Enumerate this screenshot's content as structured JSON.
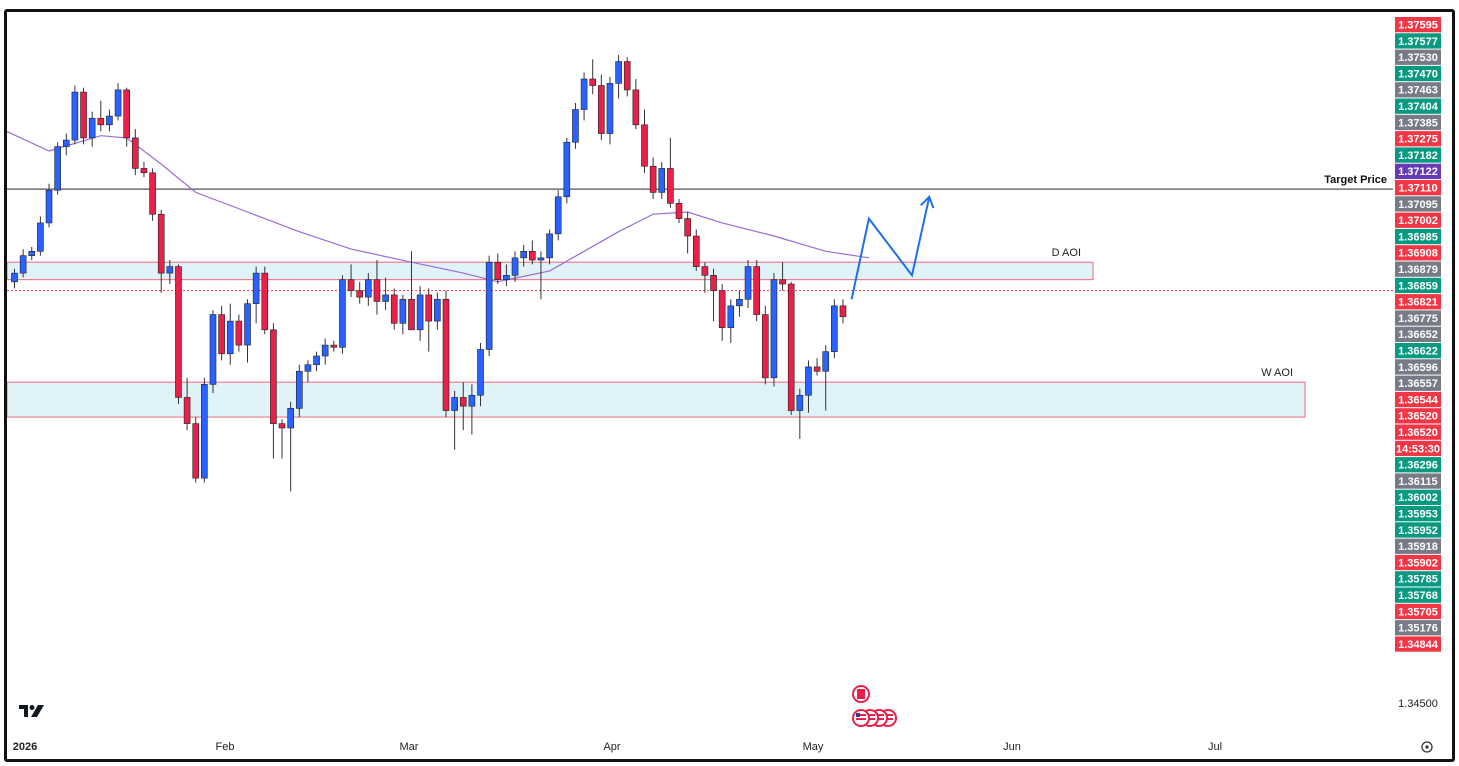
{
  "chart_data": {
    "type": "candlestick",
    "instrument_logo": "tradingview-logo",
    "x_axis": {
      "labels": [
        "2026",
        "Feb",
        "Mar",
        "Apr",
        "May",
        "Jun",
        "Jul"
      ]
    },
    "y_axis": {
      "plain_label": "1.34500",
      "price_tags": [
        {
          "text": "1.37595",
          "color": "#f23645"
        },
        {
          "text": "1.37577",
          "color": "#089981"
        },
        {
          "text": "1.37530",
          "color": "#787b86"
        },
        {
          "text": "1.37470",
          "color": "#089981"
        },
        {
          "text": "1.37463",
          "color": "#787b86"
        },
        {
          "text": "1.37404",
          "color": "#089981"
        },
        {
          "text": "1.37385",
          "color": "#787b86"
        },
        {
          "text": "1.37275",
          "color": "#f23645"
        },
        {
          "text": "1.37182",
          "color": "#089981"
        },
        {
          "text": "1.37122",
          "color": "#673ab7"
        },
        {
          "text": "1.37110",
          "color": "#f23645"
        },
        {
          "text": "1.37095",
          "color": "#787b86"
        },
        {
          "text": "1.37002",
          "color": "#f23645"
        },
        {
          "text": "1.36985",
          "color": "#089981"
        },
        {
          "text": "1.36908",
          "color": "#f23645"
        },
        {
          "text": "1.36879",
          "color": "#787b86"
        },
        {
          "text": "1.36859",
          "color": "#089981"
        },
        {
          "text": "1.36821",
          "color": "#f23645"
        },
        {
          "text": "1.36775",
          "color": "#787b86"
        },
        {
          "text": "1.36652",
          "color": "#787b86"
        },
        {
          "text": "1.36622",
          "color": "#089981"
        },
        {
          "text": "1.36596",
          "color": "#787b86"
        },
        {
          "text": "1.36557",
          "color": "#787b86"
        },
        {
          "text": "1.36544",
          "color": "#f23645"
        },
        {
          "text": "1.36520",
          "color": "#f23645"
        },
        {
          "text": "1.36520",
          "color": "#f23645"
        },
        {
          "text": "14:53:30",
          "color": "#f23645"
        },
        {
          "text": "1.36296",
          "color": "#089981"
        },
        {
          "text": "1.36115",
          "color": "#787b86"
        },
        {
          "text": "1.36002",
          "color": "#089981"
        },
        {
          "text": "1.35953",
          "color": "#089981"
        },
        {
          "text": "1.35952",
          "color": "#089981"
        },
        {
          "text": "1.35918",
          "color": "#787b86"
        },
        {
          "text": "1.35902",
          "color": "#f23645"
        },
        {
          "text": "1.35785",
          "color": "#089981"
        },
        {
          "text": "1.35768",
          "color": "#089981"
        },
        {
          "text": "1.35705",
          "color": "#f23645"
        },
        {
          "text": "1.35176",
          "color": "#787b86"
        },
        {
          "text": "1.34844",
          "color": "#f23645"
        }
      ]
    },
    "lines": [
      {
        "label": "Target Price",
        "value": 1.36985,
        "color": "#555555",
        "style": "solid"
      },
      {
        "label": "",
        "value": 1.3652,
        "color": "#f23645",
        "style": "dotted"
      }
    ],
    "zones": [
      {
        "label": "D AOI",
        "from": 1.3657,
        "to": 1.3665
      },
      {
        "label": "W AOI",
        "from": 1.3594,
        "to": 1.361
      }
    ],
    "candles": [
      {
        "t": 0,
        "o": 1.3656,
        "h": 1.3662,
        "l": 1.3653,
        "c": 1.366
      },
      {
        "t": 1,
        "o": 1.366,
        "h": 1.3671,
        "l": 1.3658,
        "c": 1.3668
      },
      {
        "t": 2,
        "o": 1.3668,
        "h": 1.3672,
        "l": 1.3666,
        "c": 1.367
      },
      {
        "t": 3,
        "o": 1.367,
        "h": 1.3686,
        "l": 1.3668,
        "c": 1.3683
      },
      {
        "t": 4,
        "o": 1.3683,
        "h": 1.3701,
        "l": 1.3681,
        "c": 1.3698
      },
      {
        "t": 5,
        "o": 1.3698,
        "h": 1.372,
        "l": 1.3696,
        "c": 1.3718
      },
      {
        "t": 6,
        "o": 1.3718,
        "h": 1.3724,
        "l": 1.3714,
        "c": 1.3721
      },
      {
        "t": 7,
        "o": 1.3721,
        "h": 1.3746,
        "l": 1.3719,
        "c": 1.3743
      },
      {
        "t": 8,
        "o": 1.3743,
        "h": 1.3745,
        "l": 1.3719,
        "c": 1.3722
      },
      {
        "t": 9,
        "o": 1.3722,
        "h": 1.3734,
        "l": 1.3718,
        "c": 1.3731
      },
      {
        "t": 10,
        "o": 1.3731,
        "h": 1.3739,
        "l": 1.3725,
        "c": 1.3728
      },
      {
        "t": 11,
        "o": 1.3728,
        "h": 1.3735,
        "l": 1.3725,
        "c": 1.3732
      },
      {
        "t": 12,
        "o": 1.3732,
        "h": 1.3747,
        "l": 1.373,
        "c": 1.3744
      },
      {
        "t": 13,
        "o": 1.3744,
        "h": 1.3745,
        "l": 1.3718,
        "c": 1.3722
      },
      {
        "t": 14,
        "o": 1.3722,
        "h": 1.3726,
        "l": 1.3705,
        "c": 1.3708
      },
      {
        "t": 15,
        "o": 1.3708,
        "h": 1.3711,
        "l": 1.3704,
        "c": 1.3706
      },
      {
        "t": 16,
        "o": 1.3706,
        "h": 1.3708,
        "l": 1.3684,
        "c": 1.3687
      },
      {
        "t": 17,
        "o": 1.3687,
        "h": 1.3689,
        "l": 1.3651,
        "c": 1.366
      },
      {
        "t": 18,
        "o": 1.366,
        "h": 1.3666,
        "l": 1.3655,
        "c": 1.3663
      },
      {
        "t": 19,
        "o": 1.3663,
        "h": 1.3664,
        "l": 1.36,
        "c": 1.3603
      },
      {
        "t": 20,
        "o": 1.3603,
        "h": 1.3612,
        "l": 1.3588,
        "c": 1.3591
      },
      {
        "t": 21,
        "o": 1.3591,
        "h": 1.3594,
        "l": 1.3564,
        "c": 1.3566
      },
      {
        "t": 22,
        "o": 1.3566,
        "h": 1.3612,
        "l": 1.3564,
        "c": 1.3609
      },
      {
        "t": 23,
        "o": 1.3609,
        "h": 1.3643,
        "l": 1.3605,
        "c": 1.3641
      },
      {
        "t": 24,
        "o": 1.3641,
        "h": 1.3645,
        "l": 1.362,
        "c": 1.3623
      },
      {
        "t": 25,
        "o": 1.3623,
        "h": 1.3646,
        "l": 1.3618,
        "c": 1.3638
      },
      {
        "t": 26,
        "o": 1.3638,
        "h": 1.3641,
        "l": 1.3624,
        "c": 1.3627
      },
      {
        "t": 27,
        "o": 1.3627,
        "h": 1.3648,
        "l": 1.3619,
        "c": 1.3646
      },
      {
        "t": 28,
        "o": 1.3646,
        "h": 1.3663,
        "l": 1.3637,
        "c": 1.366
      },
      {
        "t": 29,
        "o": 1.366,
        "h": 1.3663,
        "l": 1.3632,
        "c": 1.3634
      },
      {
        "t": 30,
        "o": 1.3634,
        "h": 1.3637,
        "l": 1.3575,
        "c": 1.3591
      },
      {
        "t": 31,
        "o": 1.3591,
        "h": 1.3593,
        "l": 1.3575,
        "c": 1.3589
      },
      {
        "t": 32,
        "o": 1.3589,
        "h": 1.3601,
        "l": 1.356,
        "c": 1.3598
      },
      {
        "t": 33,
        "o": 1.3598,
        "h": 1.3618,
        "l": 1.3594,
        "c": 1.3615
      },
      {
        "t": 34,
        "o": 1.3615,
        "h": 1.362,
        "l": 1.361,
        "c": 1.3618
      },
      {
        "t": 35,
        "o": 1.3618,
        "h": 1.3624,
        "l": 1.3615,
        "c": 1.3622
      },
      {
        "t": 36,
        "o": 1.3622,
        "h": 1.363,
        "l": 1.3618,
        "c": 1.3627
      },
      {
        "t": 37,
        "o": 1.3627,
        "h": 1.3629,
        "l": 1.3624,
        "c": 1.3626
      },
      {
        "t": 38,
        "o": 1.3626,
        "h": 1.3659,
        "l": 1.3623,
        "c": 1.3657
      },
      {
        "t": 39,
        "o": 1.3657,
        "h": 1.3664,
        "l": 1.3649,
        "c": 1.3652
      },
      {
        "t": 40,
        "o": 1.3652,
        "h": 1.3656,
        "l": 1.3646,
        "c": 1.3649
      },
      {
        "t": 41,
        "o": 1.3649,
        "h": 1.366,
        "l": 1.3645,
        "c": 1.3657
      },
      {
        "t": 42,
        "o": 1.3657,
        "h": 1.3666,
        "l": 1.3641,
        "c": 1.3647
      },
      {
        "t": 43,
        "o": 1.3647,
        "h": 1.3658,
        "l": 1.3643,
        "c": 1.365
      },
      {
        "t": 44,
        "o": 1.365,
        "h": 1.3653,
        "l": 1.3634,
        "c": 1.3637
      },
      {
        "t": 45,
        "o": 1.3637,
        "h": 1.365,
        "l": 1.3632,
        "c": 1.3648
      },
      {
        "t": 46,
        "o": 1.3648,
        "h": 1.367,
        "l": 1.3636,
        "c": 1.3634
      },
      {
        "t": 47,
        "o": 1.3634,
        "h": 1.3654,
        "l": 1.3629,
        "c": 1.365
      },
      {
        "t": 48,
        "o": 1.365,
        "h": 1.3653,
        "l": 1.3624,
        "c": 1.3638
      },
      {
        "t": 49,
        "o": 1.3638,
        "h": 1.3651,
        "l": 1.3634,
        "c": 1.3648
      },
      {
        "t": 50,
        "o": 1.3648,
        "h": 1.3652,
        "l": 1.3594,
        "c": 1.3597
      },
      {
        "t": 51,
        "o": 1.3597,
        "h": 1.3606,
        "l": 1.3579,
        "c": 1.3603
      },
      {
        "t": 52,
        "o": 1.3603,
        "h": 1.361,
        "l": 1.3588,
        "c": 1.3599
      },
      {
        "t": 53,
        "o": 1.3599,
        "h": 1.3609,
        "l": 1.3586,
        "c": 1.3604
      },
      {
        "t": 54,
        "o": 1.3604,
        "h": 1.3628,
        "l": 1.3599,
        "c": 1.3625
      },
      {
        "t": 55,
        "o": 1.3625,
        "h": 1.3668,
        "l": 1.3622,
        "c": 1.3665
      },
      {
        "t": 56,
        "o": 1.3665,
        "h": 1.3669,
        "l": 1.3655,
        "c": 1.3657
      },
      {
        "t": 57,
        "o": 1.3657,
        "h": 1.3664,
        "l": 1.3654,
        "c": 1.3659
      },
      {
        "t": 58,
        "o": 1.3659,
        "h": 1.367,
        "l": 1.3656,
        "c": 1.3667
      },
      {
        "t": 59,
        "o": 1.3667,
        "h": 1.3673,
        "l": 1.3663,
        "c": 1.367
      },
      {
        "t": 60,
        "o": 1.367,
        "h": 1.3675,
        "l": 1.3664,
        "c": 1.3666
      },
      {
        "t": 61,
        "o": 1.3666,
        "h": 1.367,
        "l": 1.3648,
        "c": 1.3667
      },
      {
        "t": 62,
        "o": 1.3667,
        "h": 1.368,
        "l": 1.3664,
        "c": 1.3678
      },
      {
        "t": 63,
        "o": 1.3678,
        "h": 1.3698,
        "l": 1.3675,
        "c": 1.3695
      },
      {
        "t": 64,
        "o": 1.3695,
        "h": 1.3722,
        "l": 1.3692,
        "c": 1.372
      },
      {
        "t": 65,
        "o": 1.372,
        "h": 1.3738,
        "l": 1.3717,
        "c": 1.3735
      },
      {
        "t": 66,
        "o": 1.3735,
        "h": 1.3752,
        "l": 1.373,
        "c": 1.3749
      },
      {
        "t": 67,
        "o": 1.3749,
        "h": 1.3758,
        "l": 1.3742,
        "c": 1.3746
      },
      {
        "t": 68,
        "o": 1.3746,
        "h": 1.3751,
        "l": 1.3721,
        "c": 1.3724
      },
      {
        "t": 69,
        "o": 1.3724,
        "h": 1.375,
        "l": 1.3719,
        "c": 1.3747
      },
      {
        "t": 70,
        "o": 1.3747,
        "h": 1.376,
        "l": 1.374,
        "c": 1.3757
      },
      {
        "t": 71,
        "o": 1.3757,
        "h": 1.3759,
        "l": 1.3741,
        "c": 1.3744
      },
      {
        "t": 72,
        "o": 1.3744,
        "h": 1.3749,
        "l": 1.3726,
        "c": 1.3728
      },
      {
        "t": 73,
        "o": 1.3728,
        "h": 1.3735,
        "l": 1.3706,
        "c": 1.3709
      },
      {
        "t": 74,
        "o": 1.3709,
        "h": 1.3713,
        "l": 1.3694,
        "c": 1.3697
      },
      {
        "t": 75,
        "o": 1.3697,
        "h": 1.3711,
        "l": 1.3694,
        "c": 1.3708
      },
      {
        "t": 76,
        "o": 1.3708,
        "h": 1.3722,
        "l": 1.369,
        "c": 1.3692
      },
      {
        "t": 77,
        "o": 1.3692,
        "h": 1.3694,
        "l": 1.3683,
        "c": 1.3685
      },
      {
        "t": 78,
        "o": 1.3685,
        "h": 1.3688,
        "l": 1.3669,
        "c": 1.3677
      },
      {
        "t": 79,
        "o": 1.3677,
        "h": 1.368,
        "l": 1.3661,
        "c": 1.3663
      },
      {
        "t": 80,
        "o": 1.3663,
        "h": 1.3665,
        "l": 1.3651,
        "c": 1.3659
      },
      {
        "t": 81,
        "o": 1.3659,
        "h": 1.3662,
        "l": 1.3638,
        "c": 1.3652
      },
      {
        "t": 82,
        "o": 1.3652,
        "h": 1.3655,
        "l": 1.3629,
        "c": 1.3635
      },
      {
        "t": 83,
        "o": 1.3635,
        "h": 1.3648,
        "l": 1.3628,
        "c": 1.3645
      },
      {
        "t": 84,
        "o": 1.3645,
        "h": 1.3652,
        "l": 1.364,
        "c": 1.3648
      },
      {
        "t": 85,
        "o": 1.3648,
        "h": 1.3666,
        "l": 1.3644,
        "c": 1.3663
      },
      {
        "t": 86,
        "o": 1.3663,
        "h": 1.3666,
        "l": 1.3638,
        "c": 1.3641
      },
      {
        "t": 87,
        "o": 1.3641,
        "h": 1.3645,
        "l": 1.3609,
        "c": 1.3612
      },
      {
        "t": 88,
        "o": 1.3612,
        "h": 1.366,
        "l": 1.3608,
        "c": 1.3657
      },
      {
        "t": 89,
        "o": 1.3657,
        "h": 1.3665,
        "l": 1.3652,
        "c": 1.3655
      },
      {
        "t": 90,
        "o": 1.3655,
        "h": 1.3656,
        "l": 1.3595,
        "c": 1.3597
      },
      {
        "t": 91,
        "o": 1.3597,
        "h": 1.3607,
        "l": 1.3584,
        "c": 1.3604
      },
      {
        "t": 92,
        "o": 1.3604,
        "h": 1.362,
        "l": 1.3596,
        "c": 1.3617
      },
      {
        "t": 93,
        "o": 1.3617,
        "h": 1.3621,
        "l": 1.3613,
        "c": 1.3615
      },
      {
        "t": 94,
        "o": 1.3615,
        "h": 1.3627,
        "l": 1.3597,
        "c": 1.3624
      },
      {
        "t": 95,
        "o": 1.3624,
        "h": 1.3648,
        "l": 1.3621,
        "c": 1.3645
      },
      {
        "t": 96,
        "o": 1.3645,
        "h": 1.3648,
        "l": 1.3637,
        "c": 1.364
      }
    ],
    "moving_average": {
      "color": "#9c6bd6",
      "points": [
        {
          "t": -2,
          "v": 1.3727
        },
        {
          "t": 4,
          "v": 1.3716
        },
        {
          "t": 10,
          "v": 1.3723
        },
        {
          "t": 13,
          "v": 1.3722
        },
        {
          "t": 17,
          "v": 1.371
        },
        {
          "t": 21,
          "v": 1.3697
        },
        {
          "t": 27,
          "v": 1.3688
        },
        {
          "t": 33,
          "v": 1.3679
        },
        {
          "t": 39,
          "v": 1.3671
        },
        {
          "t": 46,
          "v": 1.3665
        },
        {
          "t": 52,
          "v": 1.366
        },
        {
          "t": 56,
          "v": 1.3656
        },
        {
          "t": 62,
          "v": 1.3661
        },
        {
          "t": 66,
          "v": 1.367
        },
        {
          "t": 70,
          "v": 1.3679
        },
        {
          "t": 74,
          "v": 1.3687
        },
        {
          "t": 78,
          "v": 1.3688
        },
        {
          "t": 82,
          "v": 1.3683
        },
        {
          "t": 88,
          "v": 1.3677
        },
        {
          "t": 94,
          "v": 1.367
        },
        {
          "t": 99,
          "v": 1.3667
        }
      ]
    },
    "projection": {
      "color": "#1e6fe8",
      "points": [
        {
          "t": 97,
          "v": 1.3648
        },
        {
          "t": 99,
          "v": 1.3685
        },
        {
          "t": 104,
          "v": 1.3659
        },
        {
          "t": 106,
          "v": 1.3695
        }
      ]
    },
    "event_icons": [
      {
        "flag": "Canada",
        "icon": "canada-flag-icon"
      },
      {
        "flag": "United States",
        "icon": "usa-flag-icon",
        "count": 4
      }
    ],
    "settings_icon": "settings-icon"
  }
}
